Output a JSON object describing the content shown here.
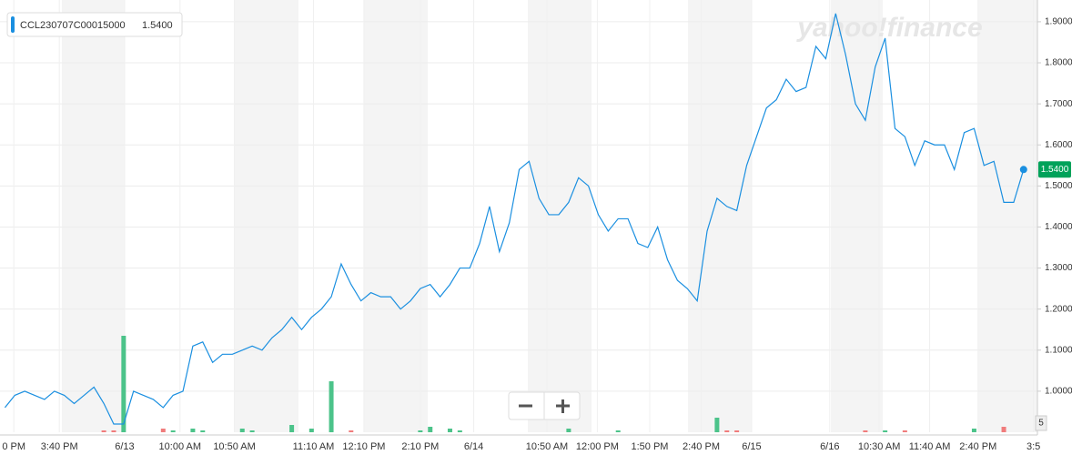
{
  "chart_data": {
    "type": "line",
    "logo": "yahoo!finance",
    "series": [
      {
        "name": "CCL230707C00015000",
        "color": "#1a8fe0",
        "values": [
          0.96,
          0.99,
          1.0,
          0.99,
          0.98,
          1.0,
          0.99,
          0.97,
          0.99,
          1.01,
          0.97,
          0.92,
          0.92,
          1.0,
          0.99,
          0.98,
          0.96,
          0.99,
          1.0,
          1.11,
          1.12,
          1.07,
          1.09,
          1.09,
          1.1,
          1.11,
          1.1,
          1.13,
          1.15,
          1.18,
          1.15,
          1.18,
          1.2,
          1.23,
          1.31,
          1.26,
          1.22,
          1.24,
          1.23,
          1.23,
          1.2,
          1.22,
          1.25,
          1.26,
          1.23,
          1.26,
          1.3,
          1.3,
          1.36,
          1.45,
          1.34,
          1.41,
          1.54,
          1.56,
          1.47,
          1.43,
          1.43,
          1.46,
          1.52,
          1.5,
          1.43,
          1.39,
          1.42,
          1.42,
          1.36,
          1.35,
          1.4,
          1.32,
          1.27,
          1.25,
          1.22,
          1.39,
          1.47,
          1.45,
          1.44,
          1.55,
          1.62,
          1.69,
          1.71,
          1.76,
          1.73,
          1.74,
          1.84,
          1.81,
          1.92,
          1.82,
          1.7,
          1.66,
          1.79,
          1.86,
          1.64,
          1.62,
          1.55,
          1.61,
          1.6,
          1.6,
          1.54,
          1.63,
          1.64,
          1.55,
          1.56,
          1.46,
          1.46,
          1.54
        ],
        "value_labels": [
          null,
          null,
          null,
          null,
          null,
          null,
          null,
          null,
          null,
          null,
          null,
          null,
          null,
          null,
          null,
          null,
          null,
          null,
          null,
          null,
          null,
          null,
          null,
          null,
          null,
          null,
          null,
          null,
          null,
          null,
          null,
          null,
          null,
          null,
          null,
          null,
          null,
          null,
          null,
          null,
          null,
          null,
          null,
          null,
          null,
          null,
          null,
          null,
          null,
          null,
          null,
          null,
          null,
          null,
          null,
          null,
          null,
          null,
          null,
          null,
          null,
          null,
          null,
          null,
          null,
          null,
          null,
          null,
          null,
          null,
          null,
          null,
          null,
          null,
          null,
          null,
          null,
          null,
          null,
          null,
          null,
          null,
          null,
          null,
          null,
          null,
          null,
          null,
          null,
          null,
          null,
          null,
          null,
          null,
          null,
          null,
          null,
          null,
          null,
          null,
          null,
          null,
          null,
          "1.5400"
        ]
      }
    ],
    "label_color": "#00a25a",
    "xlim": [
      -0.5,
      104.4
    ],
    "xticks": [
      {
        "value": 0.9,
        "label": "0 PM"
      },
      {
        "value": 5.5,
        "label": "3:40 PM"
      },
      {
        "value": 12.1,
        "label": "6/13"
      },
      {
        "value": 17.7,
        "label": "10:00 AM"
      },
      {
        "value": 23.2,
        "label": "10:50 AM"
      },
      {
        "value": 31.2,
        "label": "11:10 AM"
      },
      {
        "value": 36.3,
        "label": "12:10 PM"
      },
      {
        "value": 42.0,
        "label": "2:10 PM"
      },
      {
        "value": 47.4,
        "label": "6/14"
      },
      {
        "value": 54.8,
        "label": "10:50 AM"
      },
      {
        "value": 59.9,
        "label": "12:00 PM"
      },
      {
        "value": 65.2,
        "label": "1:50 PM"
      },
      {
        "value": 70.4,
        "label": "2:40 PM"
      },
      {
        "value": 75.5,
        "label": "6/15"
      },
      {
        "value": 83.4,
        "label": "6/16"
      },
      {
        "value": 88.4,
        "label": "10:30 AM"
      },
      {
        "value": 93.5,
        "label": "11:40 AM"
      },
      {
        "value": 98.4,
        "label": "2:40 PM"
      },
      {
        "value": 104.0,
        "label": "3:5"
      }
    ],
    "ylim": [
      0.9,
      1.953
    ],
    "yticks": [
      {
        "value": 1.0,
        "label": "1.0000"
      },
      {
        "value": 1.1,
        "label": "1.1000"
      },
      {
        "value": 1.2,
        "label": "1.2000"
      },
      {
        "value": 1.3,
        "label": "1.3000"
      },
      {
        "value": 1.4,
        "label": "1.4000"
      },
      {
        "value": 1.5,
        "label": "1.5000"
      },
      {
        "value": 1.6,
        "label": "1.6000"
      },
      {
        "value": 1.7,
        "label": "1.7000"
      },
      {
        "value": 1.8,
        "label": "1.8000"
      },
      {
        "value": 1.9,
        "label": "1.9000"
      }
    ],
    "grid": true,
    "volume": {
      "x": [
        10,
        11,
        12,
        16,
        17,
        19,
        20,
        24,
        25,
        29,
        31,
        33,
        35,
        42,
        43,
        45,
        46,
        57,
        62,
        72,
        73,
        74,
        87,
        89,
        91,
        98,
        101
      ],
      "values": [
        1,
        1,
        53,
        2,
        1,
        2,
        1,
        2,
        1,
        4,
        2,
        28,
        1,
        1,
        3,
        2,
        1,
        2,
        1,
        8,
        1,
        1,
        1,
        1,
        1,
        2,
        3
      ],
      "colors": [
        "#f07c7c",
        "#f07c7c",
        "#4cc38a",
        "#f07c7c",
        "#4cc38a",
        "#4cc38a",
        "#4cc38a",
        "#4cc38a",
        "#4cc38a",
        "#4cc38a",
        "#4cc38a",
        "#4cc38a",
        "#f07c7c",
        "#4cc38a",
        "#4cc38a",
        "#4cc38a",
        "#4cc38a",
        "#4cc38a",
        "#4cc38a",
        "#4cc38a",
        "#f07c7c",
        "#f07c7c",
        "#f07c7c",
        "#4cc38a",
        "#f07c7c",
        "#4cc38a",
        "#f07c7c"
      ],
      "ylim": [
        0,
        60
      ],
      "yticks": [
        5
      ]
    }
  }
}
